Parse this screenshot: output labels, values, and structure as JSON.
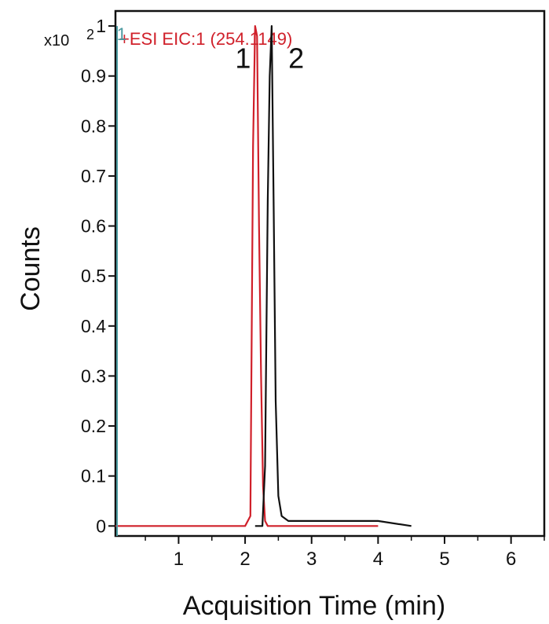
{
  "chart_data": {
    "type": "line",
    "title": "+ESI  EIC:1  (254.1149)",
    "scale_label": "x10",
    "scale_exponent": "2",
    "xlabel": "Acquisition Time (min)",
    "ylabel": "Counts",
    "xlim": [
      0.05,
      6.5
    ],
    "ylim": [
      -0.02,
      1.03
    ],
    "x_ticks": [
      1,
      2,
      3,
      4,
      5,
      6
    ],
    "y_ticks": [
      0,
      0.1,
      0.2,
      0.3,
      0.4,
      0.5,
      0.6,
      0.7,
      0.8,
      0.9,
      1
    ],
    "y_tick_labels": [
      "0",
      "0.1",
      "0.2",
      "0.3",
      "0.4",
      "0.5",
      "0.6",
      "0.7",
      "0.8",
      "0.9",
      "1"
    ],
    "grid": false,
    "legend": "none",
    "series": [
      {
        "color": "#d0202a",
        "x": [
          0.05,
          2.0,
          2.08,
          2.12,
          2.15,
          2.18,
          2.21,
          2.24,
          2.27,
          2.3,
          2.34,
          4.0
        ],
        "y": [
          0.0,
          0.0,
          0.02,
          0.76,
          1.0,
          0.98,
          0.6,
          0.3,
          0.08,
          0.01,
          0.0,
          0.0
        ]
      },
      {
        "color": "#111111",
        "x": [
          2.15,
          2.26,
          2.3,
          2.34,
          2.37,
          2.4,
          2.43,
          2.46,
          2.5,
          2.55,
          2.65,
          4.0,
          4.5
        ],
        "y": [
          0.0,
          0.0,
          0.12,
          0.65,
          0.9,
          1.0,
          0.63,
          0.25,
          0.06,
          0.02,
          0.01,
          0.01,
          0.0
        ]
      }
    ],
    "annotations": [
      {
        "text": "1",
        "x": 0.07,
        "y": 1.0,
        "color": "#4a9aa0",
        "size": "small"
      },
      {
        "text": "1",
        "x": 1.85,
        "y": 0.96,
        "color": "#111111",
        "size": "large"
      },
      {
        "text": "2",
        "x": 2.65,
        "y": 0.96,
        "color": "#111111",
        "size": "large"
      }
    ],
    "colors": {
      "title": "#d0202a",
      "axis": "#111111",
      "marker_line": "#4a9aa0"
    }
  }
}
